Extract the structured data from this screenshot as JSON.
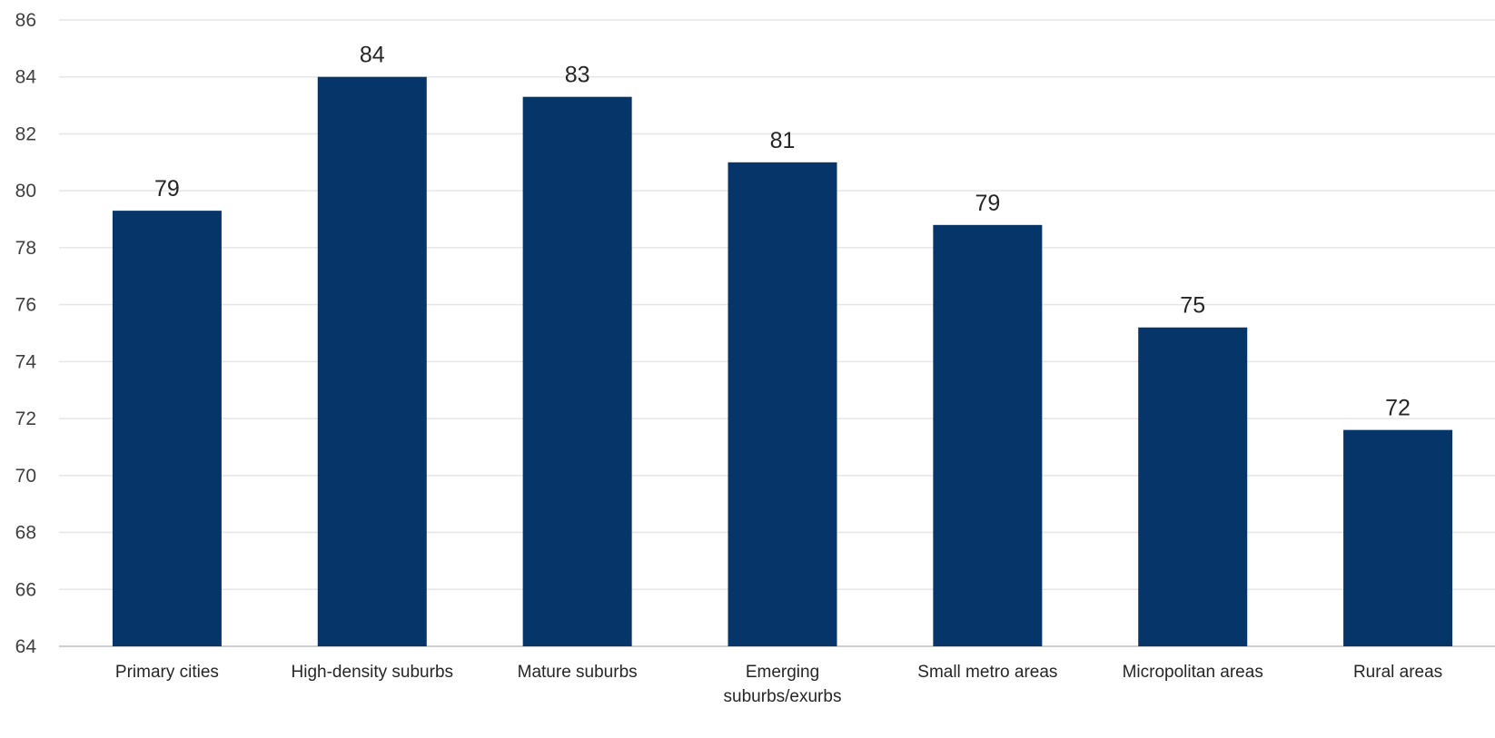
{
  "chart_data": {
    "type": "bar",
    "categories": [
      "Primary cities",
      "High-density suburbs",
      "Mature suburbs",
      "Emerging suburbs/exurbs",
      "Small metro areas",
      "Micropolitan areas",
      "Rural areas"
    ],
    "category_lines": [
      [
        "Primary cities"
      ],
      [
        "High-density suburbs"
      ],
      [
        "Mature suburbs"
      ],
      [
        "Emerging",
        "suburbs/exurbs"
      ],
      [
        "Small metro areas"
      ],
      [
        "Micropolitan areas"
      ],
      [
        "Rural areas"
      ]
    ],
    "values": [
      79.3,
      84.0,
      83.3,
      81.0,
      78.8,
      75.2,
      71.6
    ],
    "data_labels": [
      "79",
      "84",
      "83",
      "81",
      "79",
      "75",
      "72"
    ],
    "ylim": [
      64,
      86
    ],
    "yticks": [
      64,
      66,
      68,
      70,
      72,
      74,
      76,
      78,
      80,
      82,
      84,
      86
    ],
    "grid": true,
    "bar_color": "#06356a",
    "title": "",
    "xlabel": "",
    "ylabel": ""
  }
}
